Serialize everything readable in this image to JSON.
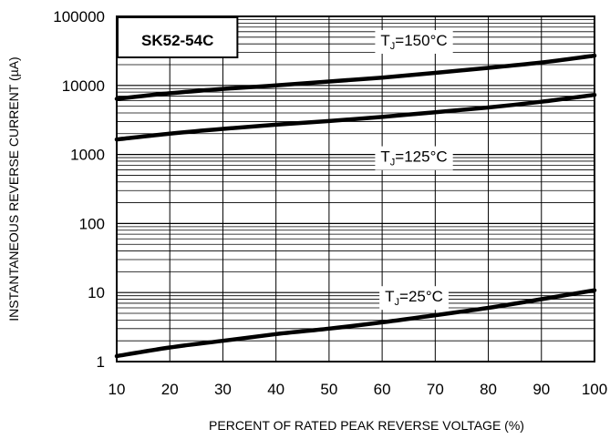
{
  "chart_data": {
    "type": "line",
    "title": "",
    "xlabel": "PERCENT OF RATED PEAK REVERSE VOLTAGE (%)",
    "ylabel": "INSTANTANEOUS REVERSE CURRENT (µA)",
    "xlim": [
      10,
      100
    ],
    "ylim": [
      1,
      100000
    ],
    "yscale": "log",
    "grid": true,
    "part_label": "SK52-54C",
    "x_ticks": [
      "10",
      "20",
      "30",
      "40",
      "50",
      "60",
      "70",
      "80",
      "90",
      "100"
    ],
    "y_ticks": [
      "1",
      "10",
      "100",
      "1000",
      "10000",
      "100000"
    ],
    "series": [
      {
        "label_main": "T",
        "label_sub": "J",
        "label_rest": "=150°C",
        "x": [
          10,
          20,
          30,
          40,
          50,
          60,
          70,
          80,
          90,
          100
        ],
        "y": [
          6400,
          7700,
          8900,
          10000,
          11400,
          13000,
          15200,
          18000,
          21500,
          27000
        ]
      },
      {
        "label_main": "T",
        "label_sub": "J",
        "label_rest": "=125°C",
        "x": [
          10,
          20,
          30,
          40,
          50,
          60,
          70,
          80,
          90,
          100
        ],
        "y": [
          1650,
          2000,
          2350,
          2700,
          3050,
          3500,
          4100,
          4800,
          5800,
          7300
        ]
      },
      {
        "label_main": "T",
        "label_sub": "J",
        "label_rest": "=25°C",
        "x": [
          10,
          20,
          30,
          40,
          50,
          60,
          70,
          80,
          90,
          100
        ],
        "y": [
          1.2,
          1.6,
          2.0,
          2.5,
          3.0,
          3.7,
          4.7,
          6.0,
          8.0,
          10.8
        ]
      }
    ]
  }
}
